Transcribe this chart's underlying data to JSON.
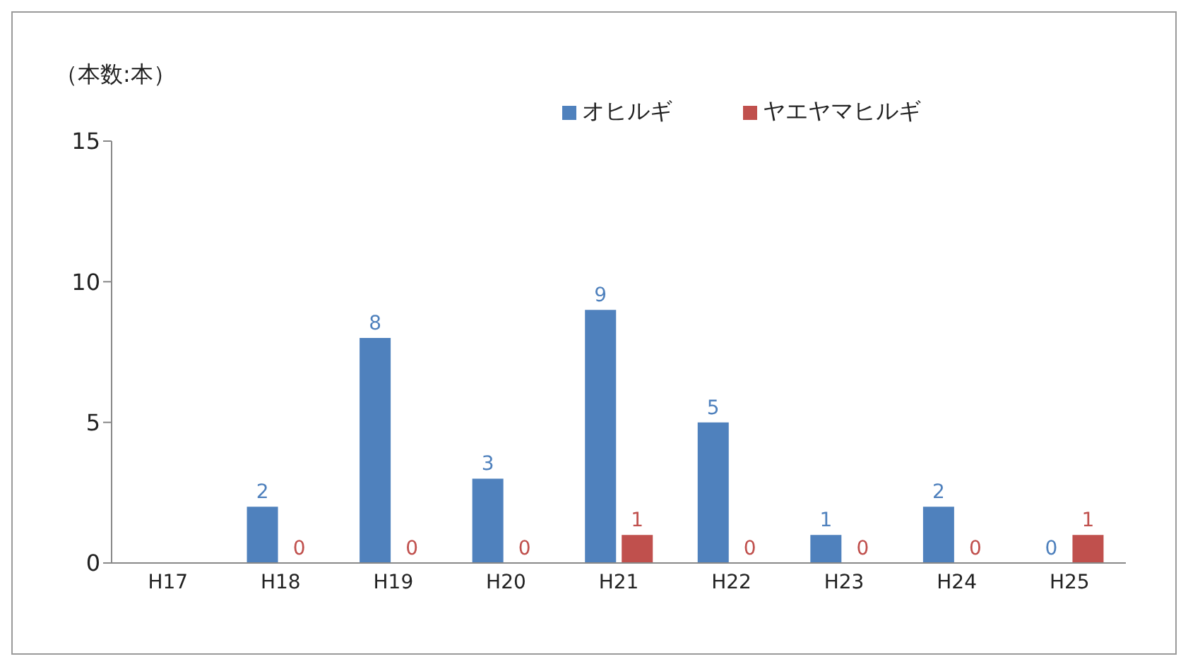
{
  "chart_data": {
    "type": "bar",
    "ylabel": "（本数:本）",
    "categories": [
      "H17",
      "H18",
      "H19",
      "H20",
      "H21",
      "H22",
      "H23",
      "H24",
      "H25"
    ],
    "series": [
      {
        "name": "オヒルギ",
        "color": "#4f81bd",
        "values": [
          null,
          2,
          8,
          3,
          9,
          5,
          1,
          2,
          0
        ]
      },
      {
        "name": "ヤエヤマヒルギ",
        "color": "#c0504d",
        "values": [
          null,
          0,
          0,
          0,
          1,
          0,
          0,
          0,
          1
        ]
      }
    ],
    "ylim": [
      0,
      15
    ],
    "yticks": [
      0,
      5,
      10,
      15
    ],
    "data_labels": true,
    "legend": "top right",
    "grid": false
  }
}
